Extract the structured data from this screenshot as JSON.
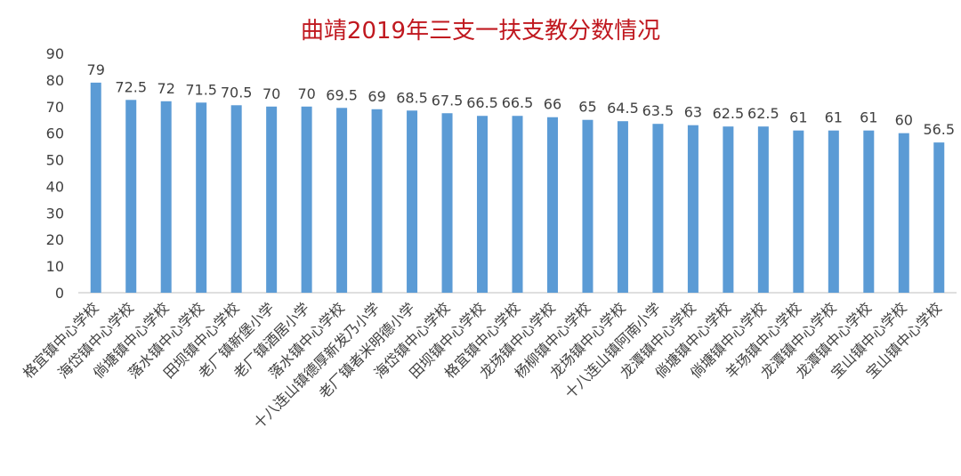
{
  "chart_data": {
    "type": "bar",
    "title": "曲靖2019年三支一扶支教分数情况",
    "categories": [
      "格宜镇中心学校",
      "海岱镇中心学校",
      "倘塘镇中心学校",
      "落水镇中心学校",
      "田坝镇中心学校",
      "老厂镇新堡小学",
      "老厂镇酒居小学",
      "落水镇中心学校",
      "十八连山镇德厚新发乃小学",
      "老厂镇者米明德小学",
      "海岱镇中心学校",
      "田坝镇中心学校",
      "格宜镇中心学校",
      "龙场镇中心学校",
      "杨柳镇中心学校",
      "龙场镇中心学校",
      "十八连山镇阿南小学",
      "龙潭镇中心学校",
      "倘塘镇中心学校",
      "倘塘镇中心学校",
      "羊场镇中心学校",
      "龙潭镇中心学校",
      "龙潭镇中心学校",
      "宝山镇中心学校",
      "宝山镇中心学校"
    ],
    "values": [
      79,
      72.5,
      72,
      71.5,
      70.5,
      70,
      70,
      69.5,
      69,
      68.5,
      67.5,
      66.5,
      66.5,
      66,
      65,
      64.5,
      63.5,
      63,
      62.5,
      62.5,
      61,
      61,
      61,
      60,
      56.5
    ],
    "data_labels": [
      "79",
      "72.5",
      "72",
      "71.5",
      "70.5",
      "70",
      "70",
      "69.5",
      "69",
      "68.5",
      "67.5",
      "66.5",
      "66.5",
      "66",
      "65",
      "64.5",
      "63.5",
      "63",
      "62.5",
      "62.5",
      "61",
      "61",
      "61",
      "60",
      "56.5"
    ],
    "y_ticks": [
      "0",
      "10",
      "20",
      "30",
      "40",
      "50",
      "60",
      "70",
      "80",
      "90"
    ],
    "ylim": [
      0,
      90
    ],
    "xlabel": "",
    "ylabel": "",
    "grid": false,
    "legend": "none",
    "bar_color": "#5b9bd5",
    "title_color": "#c0181f",
    "axis_color": "#bfbfbf",
    "text_color": "#404040"
  }
}
